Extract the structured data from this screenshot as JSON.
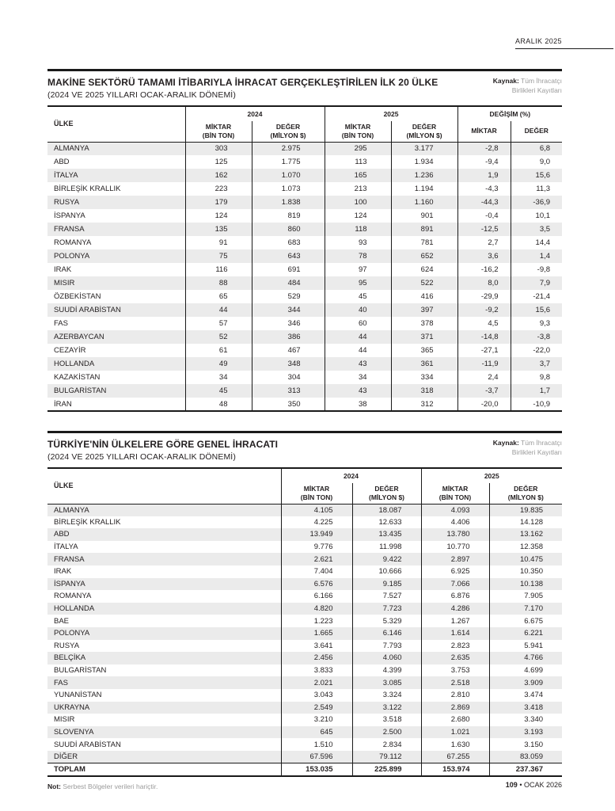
{
  "page": {
    "issue": "ARALIK 2025",
    "note_label": "Not:",
    "note_text": "Serbest Bölgeler verileri hariçtir.",
    "page_number": "109",
    "page_date": "• OCAK 2026"
  },
  "source": {
    "label": "Kaynak:",
    "line1": "Tüm İhracatçı",
    "line2": "Birlikleri Kayıtları"
  },
  "table1": {
    "title": "MAKİNE SEKTÖRÜ TAMAMI İTİBARIYLA İHRACAT GERÇEKLEŞTİRİLEN İLK 20 ÜLKE",
    "subtitle": "(2024 VE 2025 YILLARI OCAK-ARALIK DÖNEMİ)",
    "col_country": "ÜLKE",
    "groups": [
      "2024",
      "2025",
      "DEĞİŞİM (%)"
    ],
    "sub": [
      [
        "MİKTAR",
        "(BİN TON)"
      ],
      [
        "DEĞER",
        "(MİLYON $)"
      ],
      [
        "MİKTAR",
        "(BİN TON)"
      ],
      [
        "DEĞER",
        "(MİLYON $)"
      ],
      [
        "MİKTAR",
        ""
      ],
      [
        "DEĞER",
        ""
      ]
    ],
    "rows": [
      [
        "ALMANYA",
        "303",
        "2.975",
        "295",
        "3.177",
        "-2,8",
        "6,8"
      ],
      [
        "ABD",
        "125",
        "1.775",
        "113",
        "1.934",
        "-9,4",
        "9,0"
      ],
      [
        "İTALYA",
        "162",
        "1.070",
        "165",
        "1.236",
        "1,9",
        "15,6"
      ],
      [
        "BİRLEŞİK KRALLIK",
        "223",
        "1.073",
        "213",
        "1.194",
        "-4,3",
        "11,3"
      ],
      [
        "RUSYA",
        "179",
        "1.838",
        "100",
        "1.160",
        "-44,3",
        "-36,9"
      ],
      [
        "İSPANYA",
        "124",
        "819",
        "124",
        "901",
        "-0,4",
        "10,1"
      ],
      [
        "FRANSA",
        "135",
        "860",
        "118",
        "891",
        "-12,5",
        "3,5"
      ],
      [
        "ROMANYA",
        "91",
        "683",
        "93",
        "781",
        "2,7",
        "14,4"
      ],
      [
        "POLONYA",
        "75",
        "643",
        "78",
        "652",
        "3,6",
        "1,4"
      ],
      [
        "IRAK",
        "116",
        "691",
        "97",
        "624",
        "-16,2",
        "-9,8"
      ],
      [
        "MISIR",
        "88",
        "484",
        "95",
        "522",
        "8,0",
        "7,9"
      ],
      [
        "ÖZBEKİSTAN",
        "65",
        "529",
        "45",
        "416",
        "-29,9",
        "-21,4"
      ],
      [
        "SUUDİ ARABİSTAN",
        "44",
        "344",
        "40",
        "397",
        "-9,2",
        "15,6"
      ],
      [
        "FAS",
        "57",
        "346",
        "60",
        "378",
        "4,5",
        "9,3"
      ],
      [
        "AZERBAYCAN",
        "52",
        "386",
        "44",
        "371",
        "-14,8",
        "-3,8"
      ],
      [
        "CEZAYİR",
        "61",
        "467",
        "44",
        "365",
        "-27,1",
        "-22,0"
      ],
      [
        "HOLLANDA",
        "49",
        "348",
        "43",
        "361",
        "-11,9",
        "3,7"
      ],
      [
        "KAZAKİSTAN",
        "34",
        "304",
        "34",
        "334",
        "2,4",
        "9,8"
      ],
      [
        "BULGARİSTAN",
        "45",
        "313",
        "43",
        "318",
        "-3,7",
        "1,7"
      ],
      [
        "İRAN",
        "48",
        "350",
        "38",
        "312",
        "-20,0",
        "-10,9"
      ]
    ]
  },
  "table2": {
    "title": "TÜRKİYE'NİN ÜLKELERE GÖRE GENEL İHRACATI",
    "subtitle": "(2024 VE 2025 YILLARI OCAK-ARALIK DÖNEMİ)",
    "col_country": "ÜLKE",
    "groups": [
      "2024",
      "2025"
    ],
    "sub": [
      [
        "MİKTAR",
        "(BİN TON)"
      ],
      [
        "DEĞER",
        "(MİLYON $)"
      ],
      [
        "MİKTAR",
        "(BİN TON)"
      ],
      [
        "DEĞER",
        "(MİLYON $)"
      ]
    ],
    "rows": [
      [
        "ALMANYA",
        "4.105",
        "18.087",
        "4.093",
        "19.835"
      ],
      [
        "BİRLEŞİK KRALLIK",
        "4.225",
        "12.633",
        "4.406",
        "14.128"
      ],
      [
        "ABD",
        "13.949",
        "13.435",
        "13.780",
        "13.162"
      ],
      [
        "İTALYA",
        "9.776",
        "11.998",
        "10.770",
        "12.358"
      ],
      [
        "FRANSA",
        "2.621",
        "9.422",
        "2.897",
        "10.475"
      ],
      [
        "IRAK",
        "7.404",
        "10.666",
        "6.925",
        "10.350"
      ],
      [
        "İSPANYA",
        "6.576",
        "9.185",
        "7.066",
        "10.138"
      ],
      [
        "ROMANYA",
        "6.166",
        "7.527",
        "6.876",
        "7.905"
      ],
      [
        "HOLLANDA",
        "4.820",
        "7.723",
        "4.286",
        "7.170"
      ],
      [
        "BAE",
        "1.223",
        "5.329",
        "1.267",
        "6.675"
      ],
      [
        "POLONYA",
        "1.665",
        "6.146",
        "1.614",
        "6.221"
      ],
      [
        "RUSYA",
        "3.641",
        "7.793",
        "2.823",
        "5.941"
      ],
      [
        "BELÇİKA",
        "2.456",
        "4.060",
        "2.635",
        "4.766"
      ],
      [
        "BULGARİSTAN",
        "3.833",
        "4.399",
        "3.753",
        "4.699"
      ],
      [
        "FAS",
        "2.021",
        "3.085",
        "2.518",
        "3.909"
      ],
      [
        "YUNANİSTAN",
        "3.043",
        "3.324",
        "2.810",
        "3.474"
      ],
      [
        "UKRAYNA",
        "2.549",
        "3.122",
        "2.869",
        "3.418"
      ],
      [
        "MISIR",
        "3.210",
        "3.518",
        "2.680",
        "3.340"
      ],
      [
        "SLOVENYA",
        "645",
        "2.500",
        "1.021",
        "3.193"
      ],
      [
        "SUUDİ ARABİSTAN",
        "1.510",
        "2.834",
        "1.630",
        "3.150"
      ],
      [
        "DİĞER",
        "67.596",
        "79.112",
        "67.255",
        "83.059"
      ]
    ],
    "total": [
      "TOPLAM",
      "153.035",
      "225.899",
      "153.974",
      "237.367"
    ]
  }
}
